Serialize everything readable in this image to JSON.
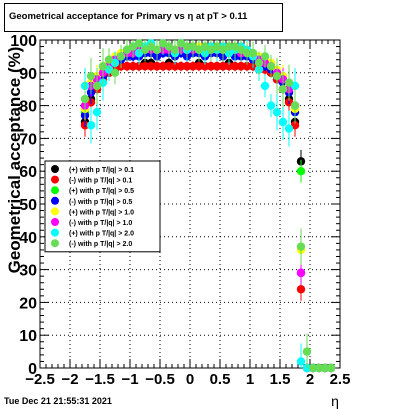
{
  "chart_data": {
    "type": "scatter",
    "title": "Geometrical acceptance for Primary vs  η at pT > 0.11",
    "xlabel": "η",
    "ylabel": "Geometrical acceptance (%)",
    "xlim": [
      -2.5,
      2.5
    ],
    "ylim": [
      0,
      100
    ],
    "grid": true,
    "legend_position": "middle-left",
    "timestamp": "Tue Dec 21 21:55:31 2021",
    "x_ticks": [
      "−2.5",
      "−2",
      "−1.5",
      "−1",
      "−0.5",
      "0",
      "0.5",
      "1",
      "1.5",
      "2",
      "2.5"
    ],
    "x_tick_values": [
      -2.5,
      -2,
      -1.5,
      -1,
      -0.5,
      0,
      0.5,
      1,
      1.5,
      2,
      2.5
    ],
    "y_ticks": [
      "0",
      "10",
      "20",
      "30",
      "40",
      "50",
      "60",
      "70",
      "80",
      "90",
      "100"
    ],
    "y_tick_values": [
      0,
      10,
      20,
      30,
      40,
      50,
      60,
      70,
      80,
      90,
      100
    ],
    "series": [
      {
        "name": "(+) with p T/|q| > 0.1",
        "color": "#000000",
        "x": [
          -1.75,
          -1.65,
          -1.55,
          -1.45,
          -1.35,
          -1.25,
          -1.15,
          -1.05,
          -0.95,
          -0.85,
          -0.75,
          -0.65,
          -0.55,
          -0.45,
          -0.35,
          -0.25,
          -0.15,
          -0.05,
          0.05,
          0.15,
          0.25,
          0.35,
          0.45,
          0.55,
          0.65,
          0.75,
          0.85,
          0.95,
          1.05,
          1.15,
          1.25,
          1.35,
          1.45,
          1.55,
          1.65,
          1.75,
          1.85,
          1.95,
          2.05,
          2.15,
          2.25,
          2.35
        ],
        "y": [
          75,
          82,
          85,
          88,
          90,
          91,
          92,
          92,
          92,
          92,
          93,
          93,
          92,
          92,
          93,
          92,
          92,
          92,
          92,
          93,
          92,
          92,
          92,
          92,
          93,
          92,
          92,
          92,
          92,
          91,
          91,
          90,
          88,
          85,
          82,
          75,
          63,
          0,
          0,
          0,
          0,
          0
        ]
      },
      {
        "name": "(-) with p T/|q| > 0.1",
        "color": "#ff0000",
        "x": [
          -1.75,
          -1.65,
          -1.55,
          -1.45,
          -1.35,
          -1.25,
          -1.15,
          -1.05,
          -0.95,
          -0.85,
          -0.75,
          -0.65,
          -0.55,
          -0.45,
          -0.35,
          -0.25,
          -0.15,
          -0.05,
          0.05,
          0.15,
          0.25,
          0.35,
          0.45,
          0.55,
          0.65,
          0.75,
          0.85,
          0.95,
          1.05,
          1.15,
          1.25,
          1.35,
          1.45,
          1.55,
          1.65,
          1.75,
          1.85,
          1.95,
          2.05,
          2.15,
          2.25,
          2.35
        ],
        "y": [
          74,
          81,
          85,
          88,
          90,
          91,
          92,
          92,
          92,
          92,
          92,
          92,
          92,
          92,
          92,
          92,
          92,
          92,
          92,
          92,
          92,
          92,
          92,
          92,
          92,
          92,
          92,
          92,
          92,
          91,
          91,
          90,
          88,
          85,
          81,
          74,
          24,
          0,
          0,
          0,
          0,
          0
        ]
      },
      {
        "name": "(+) with p T/|q| > 0.5",
        "color": "#00ff00",
        "x": [
          -1.75,
          -1.65,
          -1.55,
          -1.45,
          -1.35,
          -1.25,
          -1.15,
          -1.05,
          -0.95,
          -0.85,
          -0.75,
          -0.65,
          -0.55,
          -0.45,
          -0.35,
          -0.25,
          -0.15,
          -0.05,
          0.05,
          0.15,
          0.25,
          0.35,
          0.45,
          0.55,
          0.65,
          0.75,
          0.85,
          0.95,
          1.05,
          1.15,
          1.25,
          1.35,
          1.45,
          1.55,
          1.65,
          1.75,
          1.85,
          1.95,
          2.05,
          2.15,
          2.25,
          2.35
        ],
        "y": [
          78,
          86,
          88,
          90,
          92,
          94,
          95,
          96,
          96,
          97,
          96,
          97,
          97,
          96,
          97,
          96,
          97,
          96,
          97,
          96,
          97,
          97,
          96,
          97,
          96,
          97,
          96,
          96,
          95,
          94,
          93,
          92,
          90,
          88,
          86,
          78,
          60,
          0,
          0,
          0,
          0,
          0
        ]
      },
      {
        "name": "(-) with p T/|q| > 0.5",
        "color": "#0000ff",
        "x": [
          -1.75,
          -1.65,
          -1.55,
          -1.45,
          -1.35,
          -1.25,
          -1.15,
          -1.05,
          -0.95,
          -0.85,
          -0.75,
          -0.65,
          -0.55,
          -0.45,
          -0.35,
          -0.25,
          -0.15,
          -0.05,
          0.05,
          0.15,
          0.25,
          0.35,
          0.45,
          0.55,
          0.65,
          0.75,
          0.85,
          0.95,
          1.05,
          1.15,
          1.25,
          1.35,
          1.45,
          1.55,
          1.65,
          1.75,
          1.85,
          1.95,
          2.05,
          2.15,
          2.25,
          2.35
        ],
        "y": [
          77,
          84,
          87,
          89,
          91,
          93,
          94,
          95,
          95,
          95,
          96,
          96,
          95,
          96,
          96,
          95,
          96,
          95,
          96,
          96,
          95,
          96,
          96,
          95,
          96,
          95,
          95,
          95,
          94,
          93,
          92,
          91,
          89,
          87,
          84,
          78,
          29,
          0,
          0,
          0,
          0,
          0
        ]
      },
      {
        "name": "(+) with p T/|q| > 1.0",
        "color": "#ffff00",
        "x": [
          -1.75,
          -1.65,
          -1.55,
          -1.45,
          -1.35,
          -1.25,
          -1.15,
          -1.05,
          -0.95,
          -0.85,
          -0.75,
          -0.65,
          -0.55,
          -0.45,
          -0.35,
          -0.25,
          -0.15,
          -0.05,
          0.05,
          0.15,
          0.25,
          0.35,
          0.45,
          0.55,
          0.65,
          0.75,
          0.85,
          0.95,
          1.05,
          1.15,
          1.25,
          1.35,
          1.45,
          1.55,
          1.65,
          1.75,
          1.85,
          1.95,
          2.05,
          2.15,
          2.25,
          2.35
        ],
        "y": [
          79,
          87,
          89,
          91,
          93,
          95,
          96,
          97,
          97,
          97,
          98,
          98,
          97,
          98,
          98,
          97,
          98,
          97,
          98,
          98,
          97,
          98,
          98,
          97,
          98,
          97,
          97,
          97,
          96,
          95,
          94,
          93,
          91,
          89,
          86,
          79,
          36,
          0,
          0,
          0,
          0,
          0
        ]
      },
      {
        "name": "(-) with p T/|q| > 1.0",
        "color": "#ff00ff",
        "x": [
          -1.75,
          -1.65,
          -1.55,
          -1.45,
          -1.35,
          -1.25,
          -1.15,
          -1.05,
          -0.95,
          -0.85,
          -0.75,
          -0.65,
          -0.55,
          -0.45,
          -0.35,
          -0.25,
          -0.15,
          -0.05,
          0.05,
          0.15,
          0.25,
          0.35,
          0.45,
          0.55,
          0.65,
          0.75,
          0.85,
          0.95,
          1.05,
          1.15,
          1.25,
          1.35,
          1.45,
          1.55,
          1.65,
          1.75,
          1.85,
          1.95,
          2.05,
          2.15,
          2.25,
          2.35
        ],
        "y": [
          80,
          86,
          88,
          90,
          92,
          94,
          95,
          96,
          96,
          97,
          97,
          97,
          97,
          97,
          97,
          97,
          97,
          97,
          97,
          97,
          97,
          97,
          97,
          97,
          97,
          97,
          96,
          96,
          95,
          94,
          93,
          92,
          90,
          88,
          85,
          80,
          29,
          0,
          0,
          0,
          0,
          0
        ]
      },
      {
        "name": "(+) with p T/|q| > 2.0",
        "color": "#00ffff",
        "x": [
          -1.75,
          -1.65,
          -1.55,
          -1.45,
          -1.35,
          -1.25,
          -1.15,
          -1.05,
          -0.95,
          -0.85,
          -0.75,
          -0.65,
          -0.55,
          -0.45,
          -0.35,
          -0.25,
          -0.15,
          -0.05,
          0.05,
          0.15,
          0.25,
          0.35,
          0.45,
          0.55,
          0.65,
          0.75,
          0.85,
          0.95,
          1.05,
          1.15,
          1.25,
          1.35,
          1.45,
          1.55,
          1.65,
          1.75,
          1.85,
          1.95,
          2.05,
          2.15,
          2.25,
          2.35
        ],
        "y": [
          86,
          74,
          78,
          87,
          91,
          93,
          95,
          97,
          98,
          96,
          98,
          99,
          97,
          99,
          98,
          96,
          99,
          97,
          98,
          97,
          96,
          98,
          97,
          98,
          96,
          97,
          98,
          97,
          95,
          91,
          86,
          80,
          78,
          75,
          73,
          86,
          2,
          0,
          0,
          0,
          0,
          0
        ]
      },
      {
        "name": "(-) with p T/|q| > 2.0",
        "color": "#66dd55",
        "x": [
          -1.75,
          -1.65,
          -1.55,
          -1.45,
          -1.35,
          -1.25,
          -1.15,
          -1.05,
          -0.95,
          -0.85,
          -0.75,
          -0.65,
          -0.55,
          -0.45,
          -0.35,
          -0.25,
          -0.15,
          -0.05,
          0.05,
          0.15,
          0.25,
          0.35,
          0.45,
          0.55,
          0.65,
          0.75,
          0.85,
          0.95,
          1.05,
          1.15,
          1.25,
          1.35,
          1.45,
          1.55,
          1.65,
          1.75,
          1.85,
          1.95,
          2.05,
          2.15,
          2.25,
          2.35
        ],
        "y": [
          82,
          89,
          86,
          92,
          94,
          90,
          95,
          97,
          98,
          99,
          97,
          98,
          97,
          99,
          98,
          97,
          99,
          98,
          98,
          97,
          98,
          97,
          98,
          97,
          98,
          98,
          97,
          96,
          96,
          93,
          95,
          92,
          89,
          85,
          87,
          80,
          37,
          5,
          0,
          0,
          0,
          0
        ]
      }
    ]
  }
}
